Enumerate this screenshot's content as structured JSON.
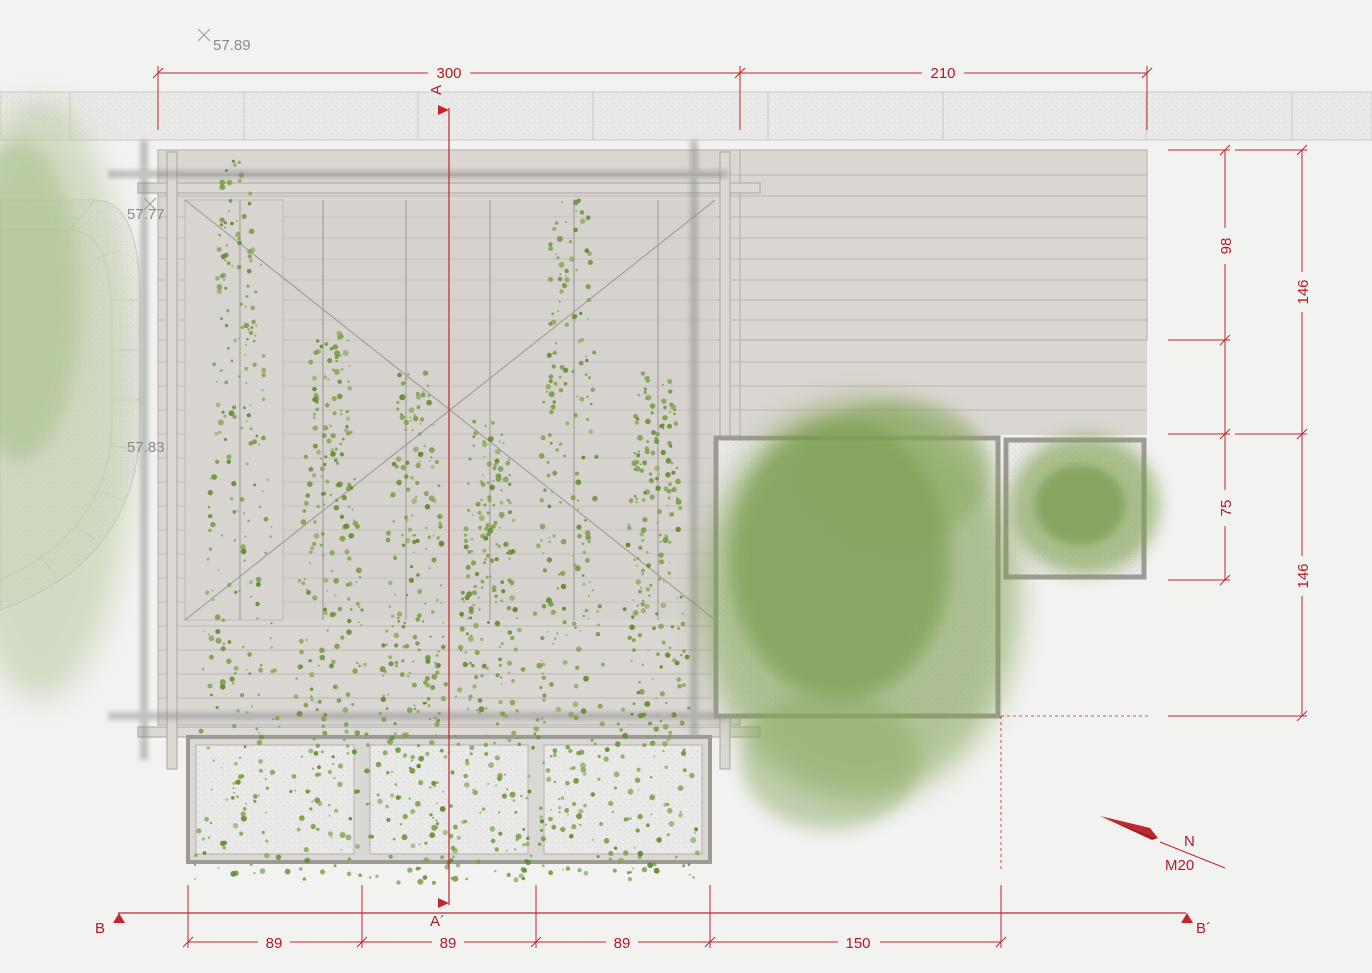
{
  "plan": {
    "elevations": {
      "top": "57.89",
      "left_upper": "57.77",
      "left_lower": "57.83"
    },
    "section_markers": {
      "a_top": "A",
      "a_bottom": "A´",
      "b_left": "B",
      "b_right": "B´"
    },
    "dimensions": {
      "top": [
        "300",
        "210"
      ],
      "right_inner": [
        "98",
        "75"
      ],
      "right_outer": [
        "146",
        "146"
      ],
      "bottom": [
        "89",
        "89",
        "89",
        "150"
      ]
    },
    "north": {
      "label": "N",
      "scale": "M20"
    },
    "colors": {
      "annotation_red": "#c0262d",
      "deck": "#dcd8d3",
      "foliage": "#6f9a3e",
      "paving": "#e6e6e4"
    }
  }
}
